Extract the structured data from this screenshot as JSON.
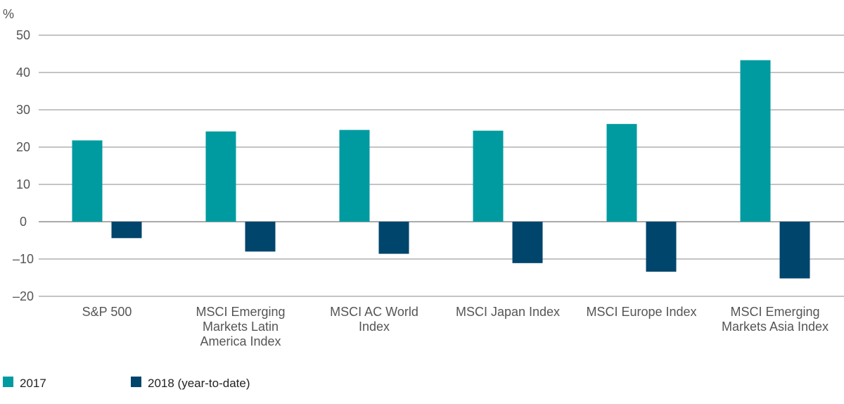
{
  "chart_data": {
    "type": "bar",
    "ylabel": "%",
    "ylim": [
      -20,
      50
    ],
    "yticks": [
      50,
      40,
      30,
      20,
      10,
      0,
      -10,
      -20
    ],
    "ytick_labels": [
      "50",
      "40",
      "30",
      "20",
      "10",
      "0",
      "–10",
      "–20"
    ],
    "grid": true,
    "legend_position": "bottom-left",
    "categories": [
      [
        "S&P 500"
      ],
      [
        "MSCI Emerging",
        "Markets Latin",
        "America Index"
      ],
      [
        "MSCI AC World",
        "Index"
      ],
      [
        "MSCI Japan Index"
      ],
      [
        "MSCI Europe Index"
      ],
      [
        "MSCI Emerging",
        "Markets Asia Index"
      ]
    ],
    "series": [
      {
        "name": "2017",
        "color": "#009ba0",
        "values": [
          21.8,
          24.2,
          24.6,
          24.4,
          26.2,
          43.3
        ]
      },
      {
        "name": "2018 (year-to-date)",
        "color": "#00456c",
        "values": [
          -4.4,
          -8.0,
          -8.6,
          -11.1,
          -13.4,
          -15.2
        ]
      }
    ]
  }
}
